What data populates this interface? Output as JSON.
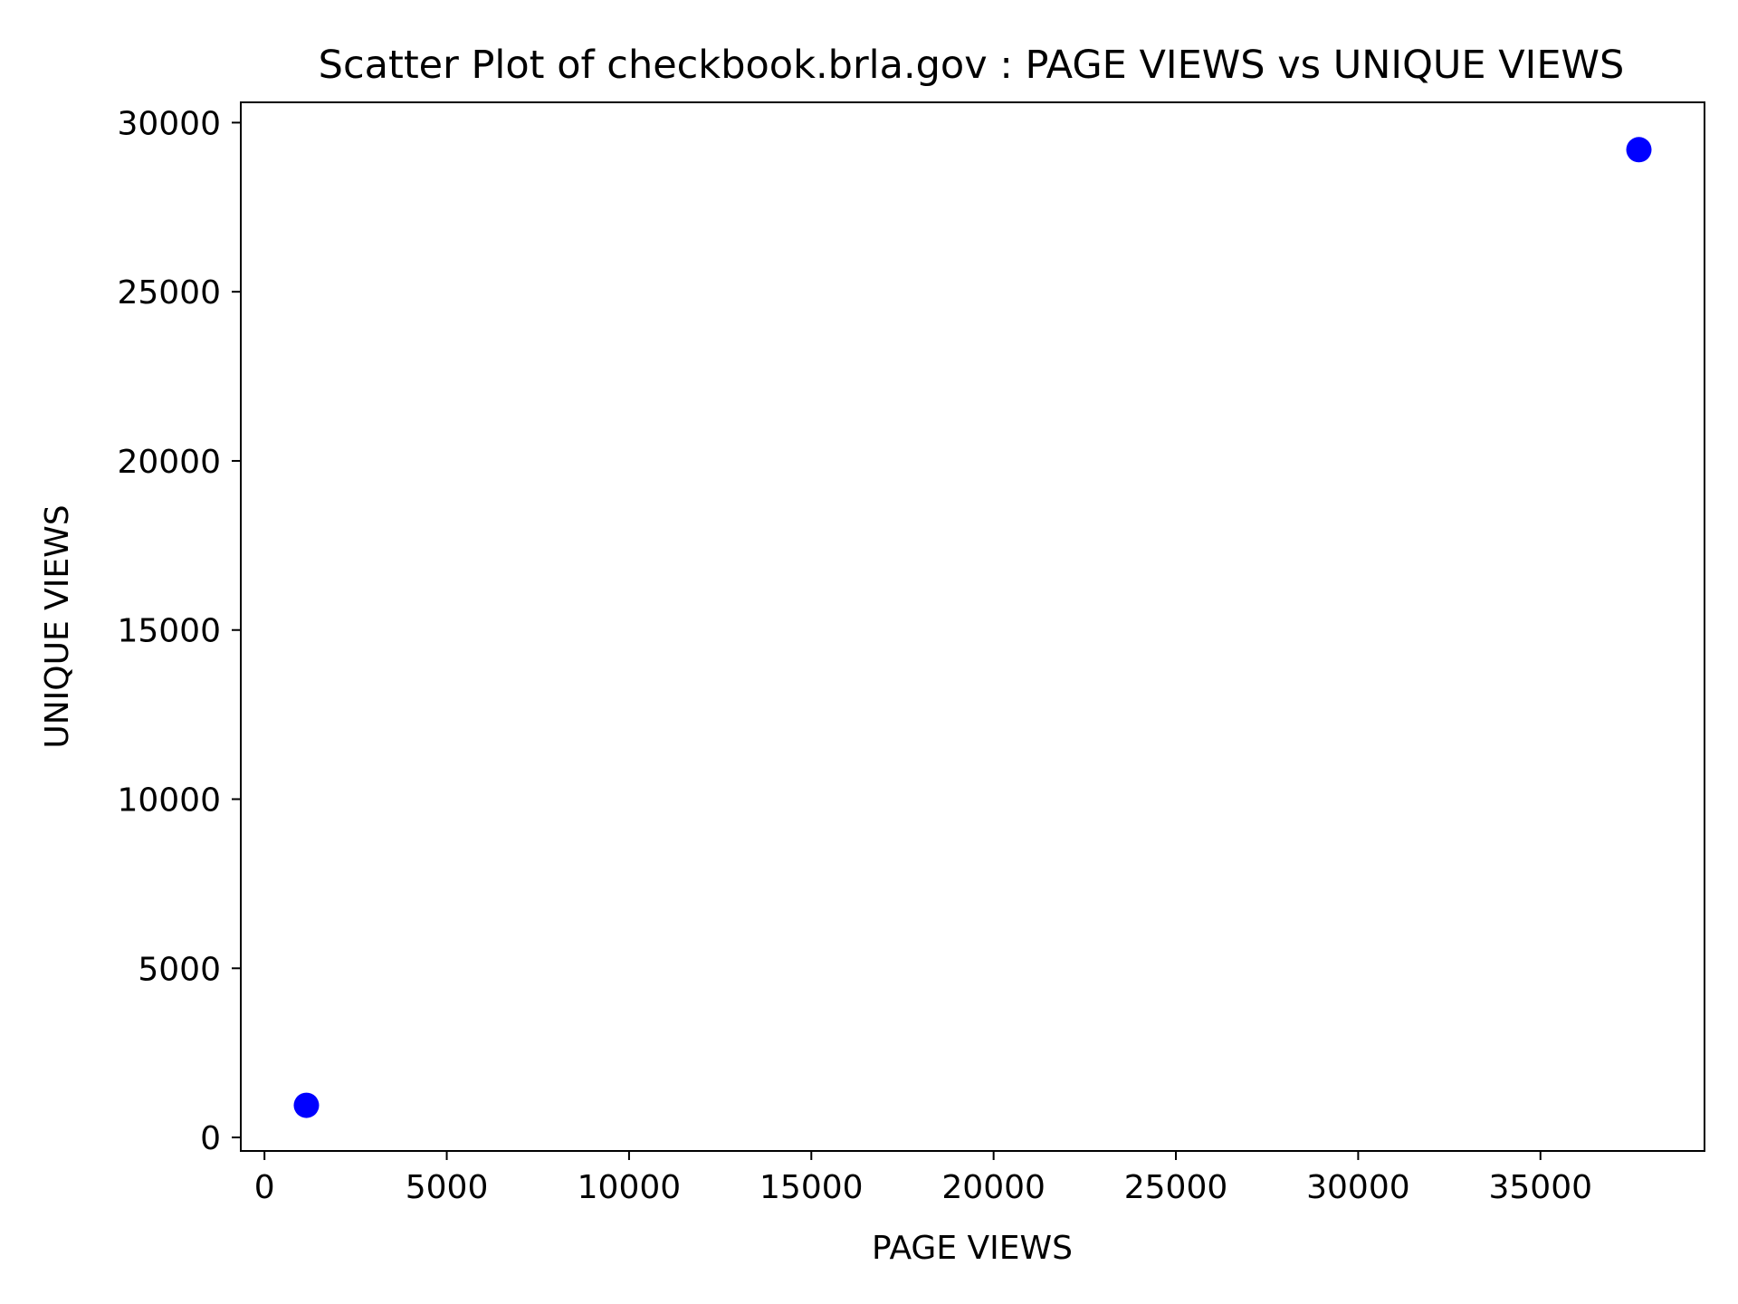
{
  "chart_data": {
    "type": "scatter",
    "title": "Scatter Plot of checkbook.brla.gov : PAGE VIEWS vs UNIQUE VIEWS",
    "xlabel": "PAGE VIEWS",
    "ylabel": "UNIQUE VIEWS",
    "xlim": [
      -650,
      39500
    ],
    "ylim": [
      -400,
      30600
    ],
    "xticks": [
      0,
      5000,
      10000,
      15000,
      20000,
      25000,
      30000,
      35000
    ],
    "yticks": [
      0,
      5000,
      10000,
      15000,
      20000,
      25000,
      30000
    ],
    "grid": false,
    "legend": "none",
    "marker_color": "#0000ff",
    "points": [
      {
        "x": 1150,
        "y": 950
      },
      {
        "x": 37700,
        "y": 29200
      }
    ]
  }
}
